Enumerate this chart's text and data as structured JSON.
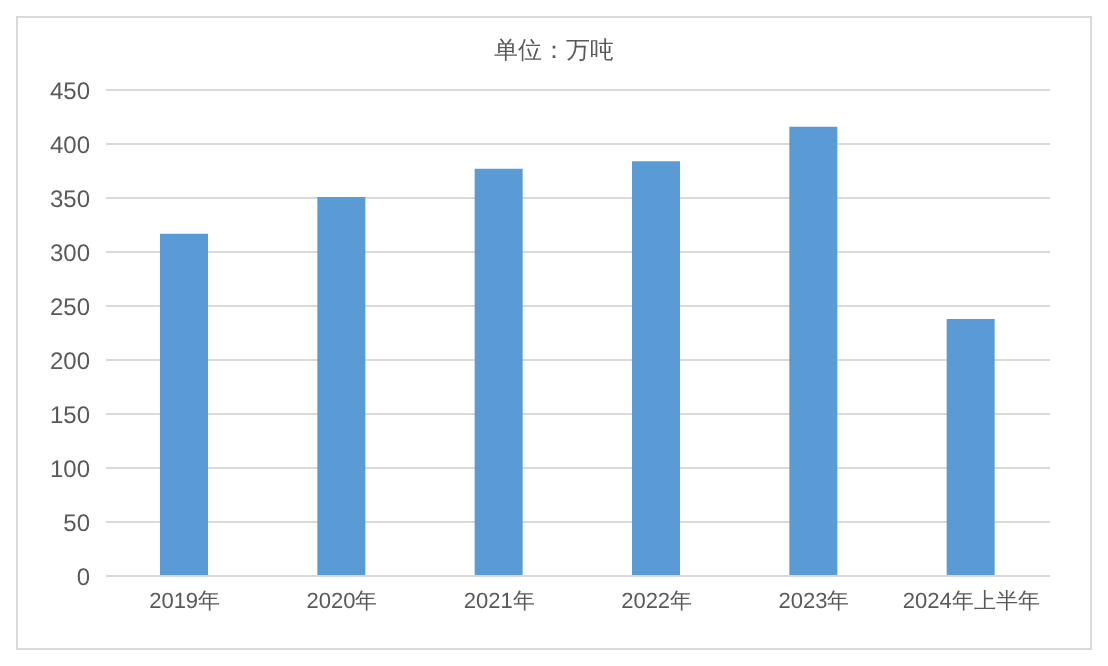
{
  "chart_data": {
    "type": "bar",
    "title": "单位：万吨",
    "categories": [
      "2019年",
      "2020年",
      "2021年",
      "2022年",
      "2023年",
      "2024年上半年"
    ],
    "values": [
      317,
      351,
      377,
      384,
      416,
      238
    ],
    "color": "#5b9bd5",
    "ylim": [
      0,
      450
    ],
    "yticks": [
      0,
      50,
      100,
      150,
      200,
      250,
      300,
      350,
      400,
      450
    ],
    "grid": "y"
  }
}
